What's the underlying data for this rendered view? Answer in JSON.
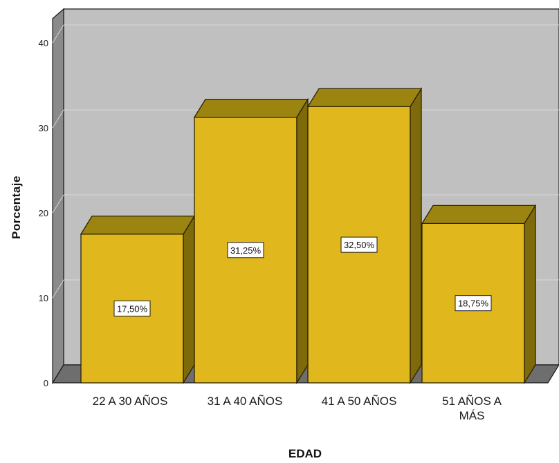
{
  "chart_data": {
    "type": "bar",
    "title": "",
    "xlabel": "EDAD",
    "ylabel": "Porcentaje",
    "categories": [
      "22 A 30 AÑOS",
      "31 A 40 AÑOS",
      "41 A 50 AÑOS",
      "51 AÑOS A MÁS"
    ],
    "values": [
      17.5,
      31.25,
      32.5,
      18.75
    ],
    "data_labels": [
      "17,50%",
      "31,25%",
      "32,50%",
      "18,75%"
    ],
    "ylim": [
      0,
      40
    ],
    "yticks": [
      0,
      10,
      20,
      30,
      40
    ],
    "grid": true,
    "legend": "none",
    "style": "3d"
  },
  "colors": {
    "bar_front": "#E0B81E",
    "bar_top": "#9C8410",
    "bar_side": "#7E6A0A",
    "wall_back": "#C0C0C0",
    "wall_side": "#8A8A8A",
    "floor": "#6E6E6E",
    "gridline": "#D6D6D6"
  }
}
